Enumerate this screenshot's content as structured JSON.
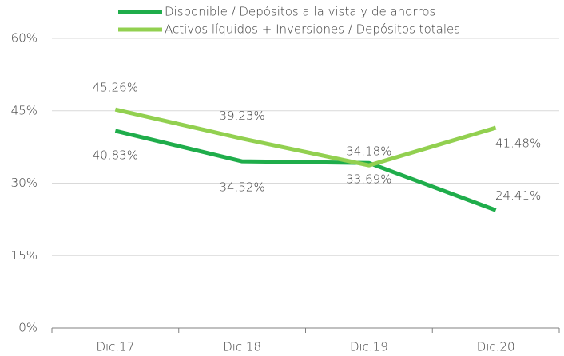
{
  "chart_data": {
    "type": "line",
    "categories": [
      "Dic.17",
      "Dic.18",
      "Dic.19",
      "Dic.20"
    ],
    "series": [
      {
        "name": "Disponible / Depósitos a la vista y de ahorros",
        "color": "#1fad4b",
        "values": [
          40.83,
          34.52,
          34.18,
          24.41
        ],
        "value_labels": [
          "40.83%",
          "34.52%",
          "34.18%",
          "24.41%"
        ]
      },
      {
        "name": "Activos líquidos + Inversiones / Depósitos totales",
        "color": "#92d050",
        "values": [
          45.26,
          39.23,
          33.69,
          41.48
        ],
        "value_labels": [
          "45.26%",
          "39.23%",
          "33.69%",
          "41.48%"
        ]
      }
    ],
    "ylim": [
      0,
      60
    ],
    "yticks": [
      {
        "value": 0,
        "label": "0%"
      },
      {
        "value": 15,
        "label": "15%"
      },
      {
        "value": 30,
        "label": "30%"
      },
      {
        "value": 45,
        "label": "45%"
      },
      {
        "value": 60,
        "label": "60%"
      }
    ],
    "grid": true,
    "legend": "top"
  }
}
